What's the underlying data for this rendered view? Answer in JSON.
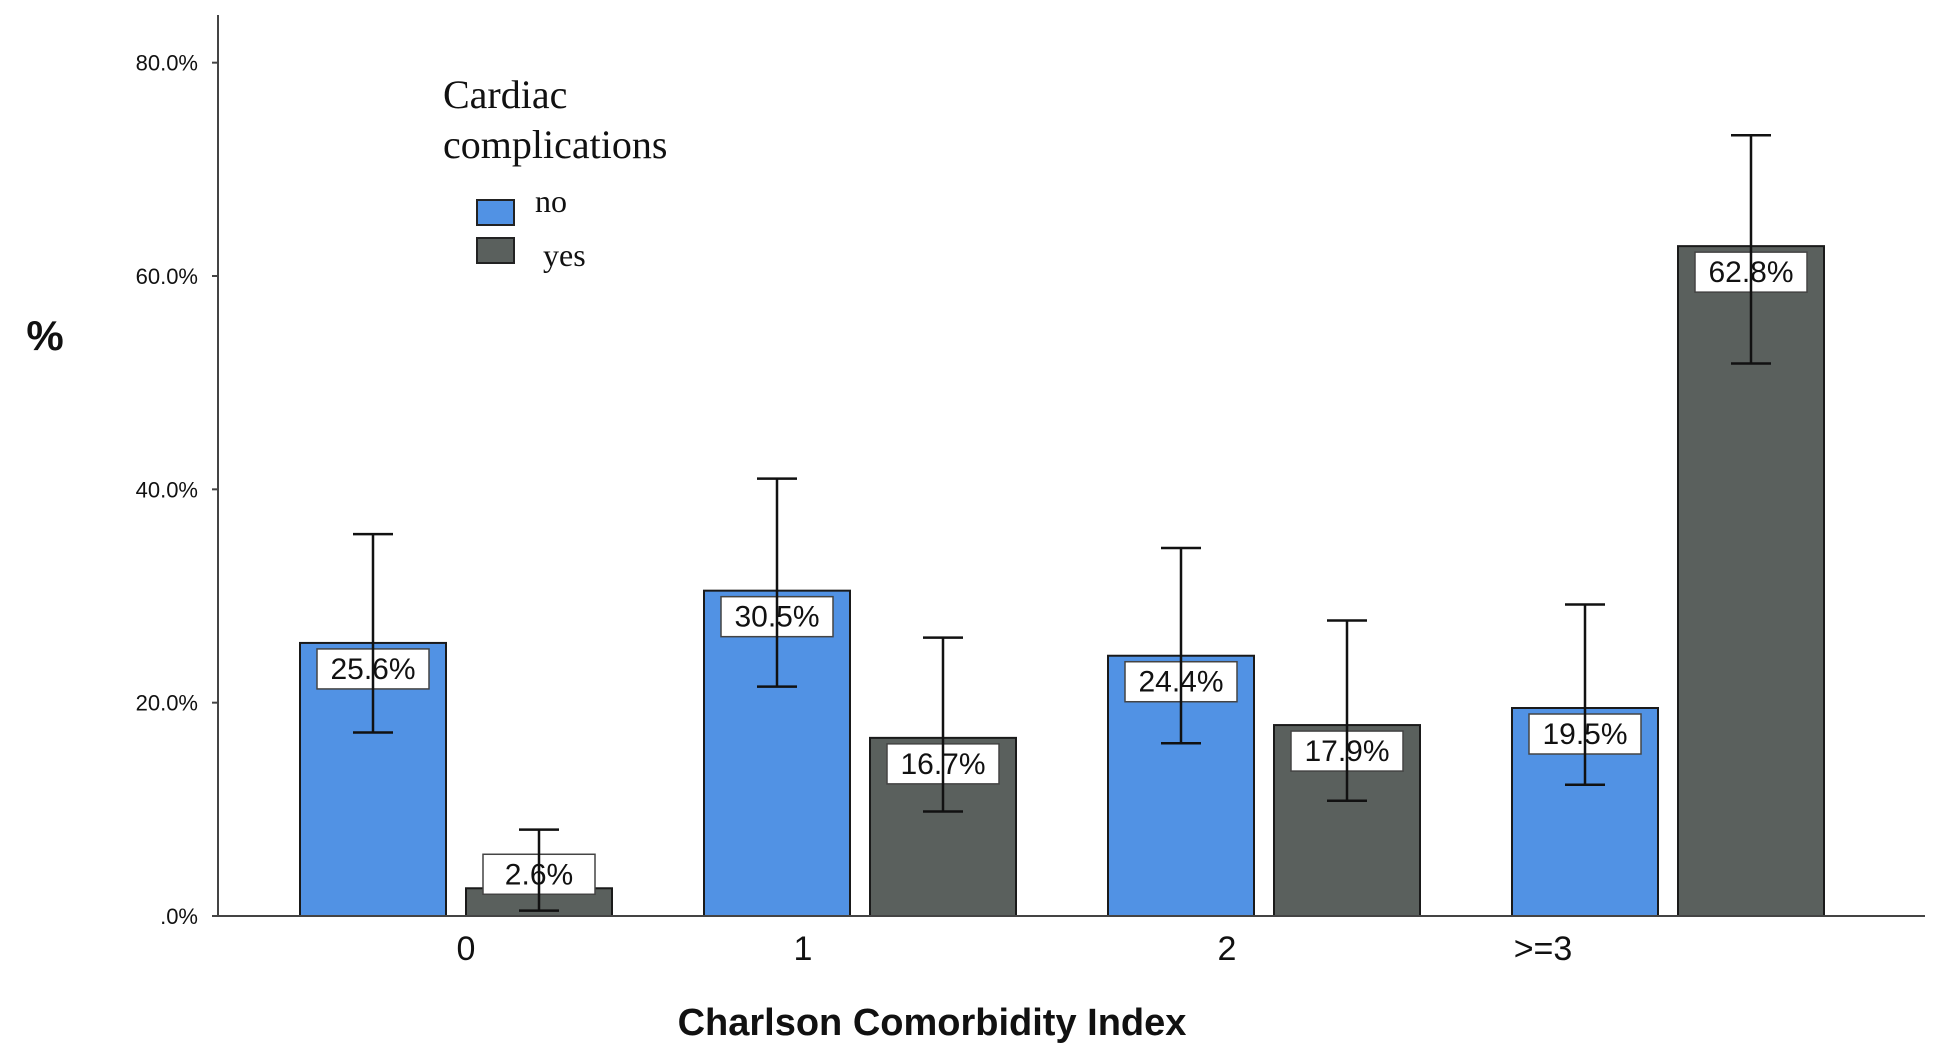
{
  "chart_data": {
    "type": "bar",
    "xlabel": "Charlson Comorbidity Index",
    "ylabel": "%",
    "categories": [
      "0",
      "1",
      "2",
      ">=3"
    ],
    "yticks": [
      ".0%",
      "20.0%",
      "40.0%",
      "60.0%",
      "80.0%"
    ],
    "ylim": [
      0,
      84
    ],
    "legend": {
      "title_line1": "Cardiac",
      "title_line2": "complications",
      "placement": "top-left"
    },
    "series": [
      {
        "name": "no",
        "color": "#5192e4",
        "values": [
          25.6,
          30.5,
          24.4,
          19.5
        ],
        "labels": [
          "25.6%",
          "30.5%",
          "24.4%",
          "19.5%"
        ],
        "ci_low": [
          17.2,
          21.5,
          16.2,
          12.3
        ],
        "ci_high": [
          35.8,
          41.0,
          34.5,
          29.2
        ]
      },
      {
        "name": "yes",
        "color": "#5a605d",
        "values": [
          2.6,
          16.7,
          17.9,
          62.8
        ],
        "labels": [
          "2.6%",
          "16.7%",
          "17.9%",
          "62.8%"
        ],
        "ci_low": [
          0.5,
          9.8,
          10.8,
          51.8
        ],
        "ci_high": [
          8.1,
          26.1,
          27.7,
          73.2
        ]
      }
    ]
  }
}
